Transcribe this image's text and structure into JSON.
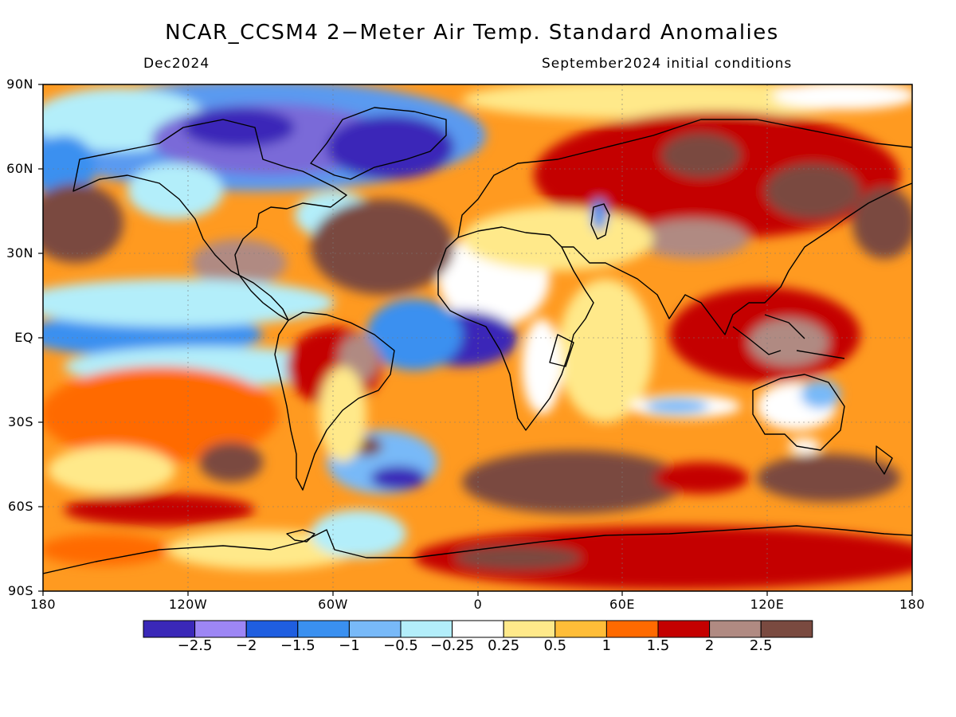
{
  "figure": {
    "title": "NCAR_CCSM4 2−Meter Air Temp. Standard Anomalies",
    "valid_label": "Dec2024",
    "init_label": "September2024 initial conditions"
  },
  "axes": {
    "lat_labels": [
      "90N",
      "60N",
      "30N",
      "EQ",
      "30S",
      "60S",
      "90S"
    ],
    "lon_labels": [
      "180",
      "120W",
      "60W",
      "0",
      "60E",
      "120E",
      "180"
    ]
  },
  "colorbar": {
    "colors": [
      "#3a28b8",
      "#9d86f5",
      "#1f5ee0",
      "#3a90f0",
      "#78b9f8",
      "#b3eefa",
      "#ffffff",
      "#ffe98a",
      "#ffbd38",
      "#ff6a00",
      "#c40000",
      "#b08a82",
      "#7a4a40"
    ],
    "labels": [
      "−2.5",
      "−2",
      "−1.5",
      "−1",
      "−0.5",
      "−0.25",
      "0.25",
      "0.5",
      "1",
      "1.5",
      "2",
      "2.5"
    ]
  }
}
